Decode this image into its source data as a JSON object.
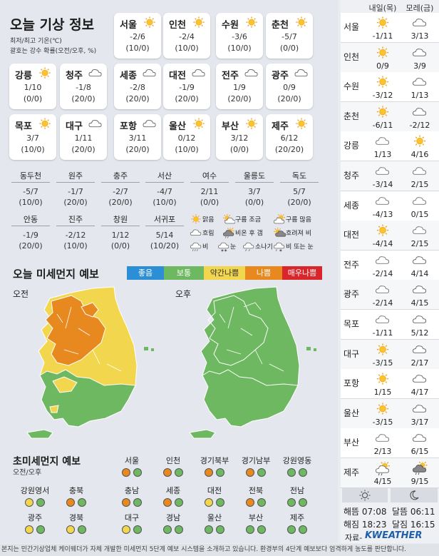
{
  "header": {
    "title": "오늘 기상 정보",
    "sub1": "최저/최고 기온(℃)",
    "sub2": "괄호는 강수 확률(오전/오후, %)"
  },
  "cities": [
    {
      "name": "서울",
      "icon": "sun",
      "temp": "-2/6",
      "pop": "(10/0)"
    },
    {
      "name": "인천",
      "icon": "sun",
      "temp": "-2/4",
      "pop": "(10/0)"
    },
    {
      "name": "수원",
      "icon": "sun",
      "temp": "-3/6",
      "pop": "(10/0)"
    },
    {
      "name": "춘천",
      "icon": "sun",
      "temp": "-5/7",
      "pop": "(0/0)"
    },
    {
      "name": "강릉",
      "icon": "sun",
      "temp": "1/10",
      "pop": "(0/0)"
    },
    {
      "name": "청주",
      "icon": "cloud",
      "temp": "-1/8",
      "pop": "(20/0)"
    },
    {
      "name": "세종",
      "icon": "cloud",
      "temp": "-2/8",
      "pop": "(20/0)"
    },
    {
      "name": "대전",
      "icon": "cloud",
      "temp": "-1/9",
      "pop": "(20/0)"
    },
    {
      "name": "전주",
      "icon": "cloud",
      "temp": "1/9",
      "pop": "(20/0)"
    },
    {
      "name": "광주",
      "icon": "cloud",
      "temp": "0/9",
      "pop": "(20/0)"
    },
    {
      "name": "목포",
      "icon": "sun",
      "temp": "3/7",
      "pop": "(10/0)"
    },
    {
      "name": "대구",
      "icon": "cloud",
      "temp": "1/11",
      "pop": "(20/0)"
    },
    {
      "name": "포항",
      "icon": "cloud",
      "temp": "3/11",
      "pop": "(20/0)"
    },
    {
      "name": "울산",
      "icon": "sun",
      "temp": "0/12",
      "pop": "(10/0)"
    },
    {
      "name": "부산",
      "icon": "sun",
      "temp": "3/12",
      "pop": "(0/0)"
    },
    {
      "name": "제주",
      "icon": "sun",
      "temp": "6/12",
      "pop": "(20/20)"
    }
  ],
  "small_cities": [
    {
      "name": "동두천",
      "temp": "-5/7",
      "pop": "(10/0)"
    },
    {
      "name": "원주",
      "temp": "-1/7",
      "pop": "(20/0)"
    },
    {
      "name": "충주",
      "temp": "-2/7",
      "pop": "(20/0)"
    },
    {
      "name": "서산",
      "temp": "-4/7",
      "pop": "(10/0)"
    },
    {
      "name": "여수",
      "temp": "2/11",
      "pop": "(0/0)"
    },
    {
      "name": "울릉도",
      "temp": "3/7",
      "pop": "(0/0)"
    },
    {
      "name": "독도",
      "temp": "5/7",
      "pop": "(20/0)"
    },
    {
      "name": "안동",
      "temp": "-1/9",
      "pop": "(20/0)"
    },
    {
      "name": "진주",
      "temp": "-2/12",
      "pop": "(10/0)"
    },
    {
      "name": "창원",
      "temp": "1/12",
      "pop": "(0/0)"
    },
    {
      "name": "서귀포",
      "temp": "5/14",
      "pop": "(10/20)"
    }
  ],
  "weather_legend": [
    {
      "icon": "sun",
      "label": "맑음"
    },
    {
      "icon": "sun-cloud",
      "label": "구름 조금"
    },
    {
      "icon": "cloud-sun",
      "label": "구름 많음"
    },
    {
      "icon": "cloud",
      "label": "흐림"
    },
    {
      "icon": "rain-clear",
      "label": "비온 후 갬"
    },
    {
      "icon": "cloud-sun-dark",
      "label": "흐려져 비"
    },
    {
      "icon": "rain",
      "label": "비"
    },
    {
      "icon": "snow",
      "label": "눈"
    },
    {
      "icon": "shower",
      "label": "소나기"
    },
    {
      "icon": "rain-snow",
      "label": "비 또는 눈"
    }
  ],
  "dust": {
    "title": "오늘 미세먼지 예보",
    "legend": [
      {
        "label": "좋음",
        "color": "#2c8fd6"
      },
      {
        "label": "보통",
        "color": "#6fb862"
      },
      {
        "label": "약간나쁨",
        "color": "#f2d74e"
      },
      {
        "label": "나쁨",
        "color": "#e7891f"
      },
      {
        "label": "매우나쁨",
        "color": "#d9262a"
      }
    ],
    "am_label": "오전",
    "pm_label": "오후"
  },
  "pm": {
    "title": "초미세먼지 예보",
    "sub": "오전/오후",
    "regions": [
      {
        "name": "서울",
        "am": "#e7891f",
        "pm": "#6fb862"
      },
      {
        "name": "인천",
        "am": "#e7891f",
        "pm": "#6fb862"
      },
      {
        "name": "경기북부",
        "am": "#e7891f",
        "pm": "#6fb862"
      },
      {
        "name": "경기남부",
        "am": "#e7891f",
        "pm": "#6fb862"
      },
      {
        "name": "강원영동",
        "am": "#6fb862",
        "pm": "#6fb862"
      },
      {
        "name": "강원영서",
        "am": "#f2d74e",
        "pm": "#6fb862"
      },
      {
        "name": "충북",
        "am": "#e7891f",
        "pm": "#6fb862"
      },
      {
        "name": "충남",
        "am": "#e7891f",
        "pm": "#6fb862"
      },
      {
        "name": "세종",
        "am": "#e7891f",
        "pm": "#6fb862"
      },
      {
        "name": "대전",
        "am": "#f2d74e",
        "pm": "#6fb862"
      },
      {
        "name": "전북",
        "am": "#e7891f",
        "pm": "#6fb862"
      },
      {
        "name": "전남",
        "am": "#6fb862",
        "pm": "#6fb862"
      },
      {
        "name": "광주",
        "am": "#f2d74e",
        "pm": "#6fb862"
      },
      {
        "name": "경북",
        "am": "#f2d74e",
        "pm": "#6fb862"
      },
      {
        "name": "대구",
        "am": "#f2d74e",
        "pm": "#6fb862"
      },
      {
        "name": "경남",
        "am": "#6fb862",
        "pm": "#6fb862"
      },
      {
        "name": "울산",
        "am": "#6fb862",
        "pm": "#6fb862"
      },
      {
        "name": "부산",
        "am": "#6fb862",
        "pm": "#6fb862"
      },
      {
        "name": "제주",
        "am": "#6fb862",
        "pm": "#6fb862"
      }
    ]
  },
  "forecast": {
    "col1": "내일(목)",
    "col2": "모레(금)",
    "rows": [
      {
        "city": "서울",
        "i1": "sun",
        "t1": "-1/11",
        "i2": "cloud",
        "t2": "3/13"
      },
      {
        "city": "인천",
        "i1": "sun",
        "t1": "0/9",
        "i2": "cloud",
        "t2": "3/9"
      },
      {
        "city": "수원",
        "i1": "sun",
        "t1": "-3/12",
        "i2": "cloud",
        "t2": "1/13"
      },
      {
        "city": "춘천",
        "i1": "sun",
        "t1": "-6/11",
        "i2": "cloud",
        "t2": "-2/12"
      },
      {
        "city": "강릉",
        "i1": "cloud-light",
        "t1": "1/13",
        "i2": "sun",
        "t2": "4/16"
      },
      {
        "city": "청주",
        "i1": "cloud-light",
        "t1": "-3/14",
        "i2": "cloud-light",
        "t2": "2/15"
      },
      {
        "city": "세종",
        "i1": "cloud-light",
        "t1": "-4/13",
        "i2": "cloud-light",
        "t2": "0/15"
      },
      {
        "city": "대전",
        "i1": "sun",
        "t1": "-4/14",
        "i2": "cloud-light",
        "t2": "2/15"
      },
      {
        "city": "전주",
        "i1": "cloud-light",
        "t1": "-2/14",
        "i2": "cloud",
        "t2": "4/14"
      },
      {
        "city": "광주",
        "i1": "cloud-light",
        "t1": "-2/14",
        "i2": "cloud",
        "t2": "4/15"
      },
      {
        "city": "목포",
        "i1": "cloud-light",
        "t1": "-1/11",
        "i2": "cloud",
        "t2": "5/12"
      },
      {
        "city": "대구",
        "i1": "sun",
        "t1": "-3/15",
        "i2": "cloud",
        "t2": "2/17"
      },
      {
        "city": "포항",
        "i1": "sun",
        "t1": "1/15",
        "i2": "cloud",
        "t2": "4/17"
      },
      {
        "city": "울산",
        "i1": "sun",
        "t1": "-3/15",
        "i2": "cloud",
        "t2": "3/17"
      },
      {
        "city": "부산",
        "i1": "cloud-light",
        "t1": "2/13",
        "i2": "cloud",
        "t2": "6/15"
      },
      {
        "city": "제주",
        "i1": "sun-rain",
        "t1": "4/15",
        "i2": "cloud-rain",
        "t2": "9/15"
      }
    ],
    "sunrise": "해뜸 07:08",
    "sunset": "해짐 18:23",
    "moonrise": "달뜸 06:11",
    "moonset": "달짐 16:15",
    "source": "자료-",
    "brand": "KWEATHER"
  },
  "footer": "본지는 민간기상업체 케이웨더가 자체 개발한 미세먼지 5단계 예보 시스템을 소개하고 있습니다. 환경부의 4단계 예보보다 엄격하게 농도를 판단합니다."
}
